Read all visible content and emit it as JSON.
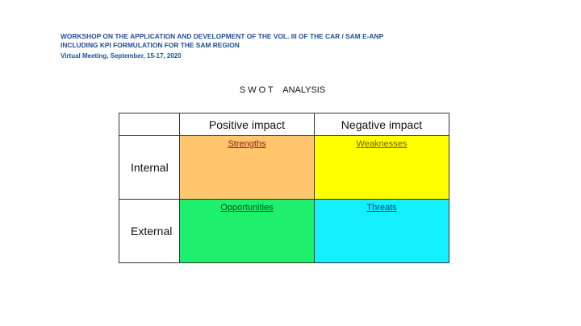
{
  "header": {
    "line1": "WORKSHOP ON THE APPLICATION AND DEVELOPMENT OF THE VOL. III OF THE CAR / SAM E-ANP",
    "line2": "INCLUDING KPI FORMULATION FOR THE SAM REGION",
    "meeting": "Virtual Meeting, September, 15-17, 2020"
  },
  "title": "S W O T    ANALYSIS",
  "table": {
    "columns": [
      "Positive impact",
      "Negative impact"
    ],
    "rows": [
      {
        "label": "Internal",
        "cells": [
          "Strengths",
          "Weaknesses"
        ]
      },
      {
        "label": "External",
        "cells": [
          "Opportunities",
          "Threats"
        ]
      }
    ]
  },
  "colors": {
    "header_text": "#1f4e9c",
    "strengths": "#ffc66e",
    "weaknesses": "#ffff00",
    "opportunities": "#1ef06e",
    "threats": "#14f0ff",
    "strengths_text": "#8b1a1a",
    "weaknesses_text": "#7a5a00",
    "opportunities_text": "#0b4d1f",
    "threats_text": "#0a3a7a"
  }
}
